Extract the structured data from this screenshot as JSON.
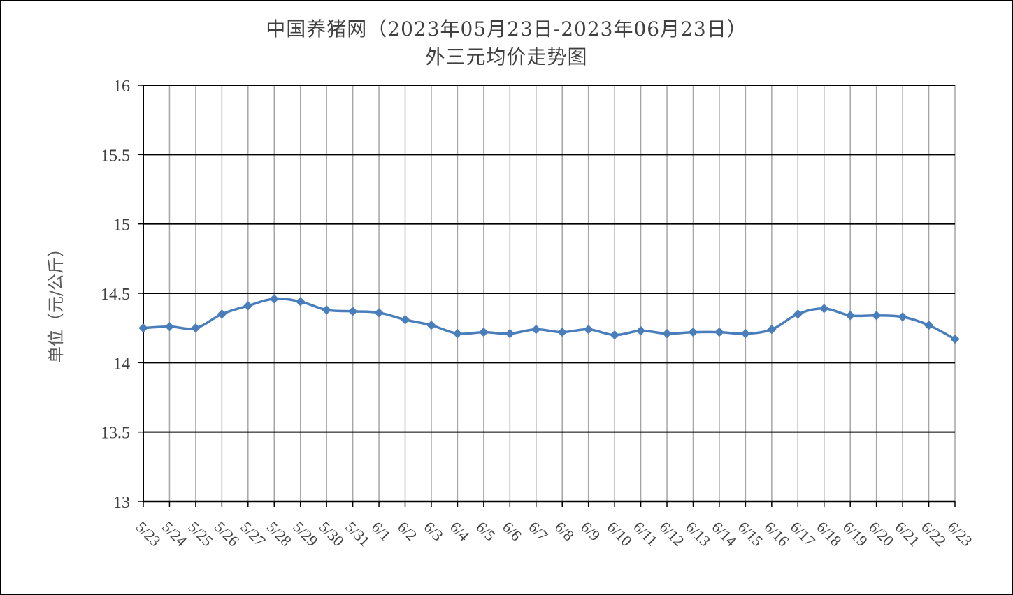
{
  "chart_data": {
    "type": "line",
    "title": "中国养猪网（2023年05月23日-2023年06月23日）",
    "subtitle": "外三元均价走势图",
    "xlabel": "",
    "ylabel": "单位（元/公斤）",
    "ylim": [
      13,
      16
    ],
    "yticks": [
      "13",
      "13.5",
      "14",
      "14.5",
      "15",
      "15.5",
      "16"
    ],
    "grid": true,
    "categories": [
      "5/23",
      "5/24",
      "5/25",
      "5/26",
      "5/27",
      "5/28",
      "5/29",
      "5/30",
      "5/31",
      "6/1",
      "6/2",
      "6/3",
      "6/4",
      "6/5",
      "6/6",
      "6/7",
      "6/8",
      "6/9",
      "6/10",
      "6/11",
      "6/12",
      "6/13",
      "6/14",
      "6/15",
      "6/16",
      "6/17",
      "6/18",
      "6/19",
      "6/20",
      "6/21",
      "6/22",
      "6/23"
    ],
    "series": [
      {
        "values": [
          14.25,
          14.26,
          14.25,
          14.35,
          14.41,
          14.46,
          14.44,
          14.38,
          14.37,
          14.36,
          14.31,
          14.27,
          14.21,
          14.22,
          14.21,
          14.24,
          14.22,
          14.24,
          14.2,
          14.23,
          14.21,
          14.22,
          14.22,
          14.21,
          14.24,
          14.35,
          14.39,
          14.34,
          14.34,
          14.33,
          14.27,
          14.17
        ],
        "color": "#4a7ebb"
      }
    ]
  }
}
